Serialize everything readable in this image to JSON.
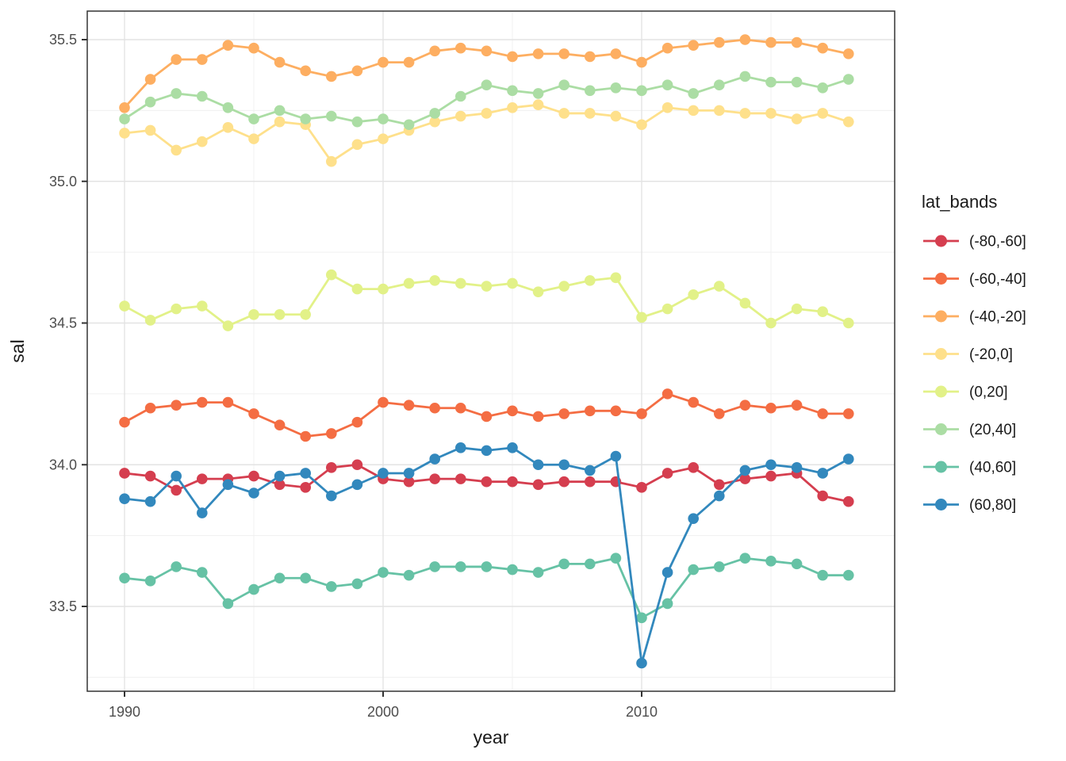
{
  "figure": {
    "background": "#ffffff",
    "panel_background": "#ffffff",
    "panel_border_color": "#333333",
    "grid_major_color": "#e3e3e3",
    "grid_minor_color": "#f0f0f0",
    "tick_color": "#333333",
    "tick_label_color": "#4d4d4d"
  },
  "axes": {
    "x": {
      "title": "year",
      "tick_labels": [
        "1990",
        "2000",
        "2010"
      ],
      "tick_values": [
        1990,
        2000,
        2010
      ],
      "minor_tick_values": [
        1995,
        2005,
        2015
      ]
    },
    "y": {
      "title": "sal",
      "tick_labels": [
        "35.5",
        "35.0",
        "34.5",
        "34.0",
        "33.5"
      ],
      "tick_values": [
        35.5,
        35.0,
        34.5,
        34.0,
        33.5
      ],
      "minor_tick_values": [
        35.25,
        34.75,
        34.25,
        33.75,
        33.25
      ]
    }
  },
  "legend": {
    "title": "lat_bands",
    "entries": [
      {
        "label": "(-80,-60]",
        "color": "#d53e4f"
      },
      {
        "label": "(-60,-40]",
        "color": "#f46d43"
      },
      {
        "label": "(-40,-20]",
        "color": "#fdae61"
      },
      {
        "label": "(-20,0]",
        "color": "#fee08b"
      },
      {
        "label": "(0,20]",
        "color": "#e2f188"
      },
      {
        "label": "(20,40]",
        "color": "#abdda4"
      },
      {
        "label": "(40,60]",
        "color": "#66c2a5"
      },
      {
        "label": "(60,80]",
        "color": "#3288bd"
      }
    ]
  },
  "chart_data": {
    "type": "line",
    "title": "",
    "xlabel": "year",
    "ylabel": "sal",
    "legend_title": "lat_bands",
    "legend_position": "right",
    "grid": true,
    "marker": "circle",
    "xlim": [
      1988.5,
      2019.8
    ],
    "ylim": [
      33.2,
      35.6
    ],
    "x": [
      1990,
      1991,
      1992,
      1993,
      1994,
      1995,
      1996,
      1997,
      1998,
      1999,
      2000,
      2001,
      2002,
      2003,
      2004,
      2005,
      2006,
      2007,
      2008,
      2009,
      2010,
      2011,
      2012,
      2013,
      2014,
      2015,
      2016,
      2017,
      2018
    ],
    "series": [
      {
        "name": "(-80,-60]",
        "color": "#d53e4f",
        "values": [
          33.97,
          33.96,
          33.91,
          33.95,
          33.95,
          33.96,
          33.93,
          33.92,
          33.99,
          34.0,
          33.95,
          33.94,
          33.95,
          33.95,
          33.94,
          33.94,
          33.93,
          33.94,
          33.94,
          33.94,
          33.92,
          33.97,
          33.99,
          33.93,
          33.95,
          33.96,
          33.97,
          33.89,
          33.87
        ]
      },
      {
        "name": "(-60,-40]",
        "color": "#f46d43",
        "values": [
          34.15,
          34.2,
          34.21,
          34.22,
          34.22,
          34.18,
          34.14,
          34.1,
          34.11,
          34.15,
          34.22,
          34.21,
          34.2,
          34.2,
          34.17,
          34.19,
          34.17,
          34.18,
          34.19,
          34.19,
          34.18,
          34.25,
          34.22,
          34.18,
          34.21,
          34.2,
          34.21,
          34.18,
          34.18
        ]
      },
      {
        "name": "(-40,-20]",
        "color": "#fdae61",
        "values": [
          35.26,
          35.36,
          35.43,
          35.43,
          35.48,
          35.47,
          35.42,
          35.39,
          35.37,
          35.39,
          35.42,
          35.42,
          35.46,
          35.47,
          35.46,
          35.44,
          35.45,
          35.45,
          35.44,
          35.45,
          35.42,
          35.47,
          35.48,
          35.49,
          35.5,
          35.49,
          35.49,
          35.47,
          35.45
        ]
      },
      {
        "name": "(-20,0]",
        "color": "#fee08b",
        "values": [
          35.17,
          35.18,
          35.11,
          35.14,
          35.19,
          35.15,
          35.21,
          35.2,
          35.07,
          35.13,
          35.15,
          35.18,
          35.21,
          35.23,
          35.24,
          35.26,
          35.27,
          35.24,
          35.24,
          35.23,
          35.2,
          35.26,
          35.25,
          35.25,
          35.24,
          35.24,
          35.22,
          35.24,
          35.21
        ]
      },
      {
        "name": "(0,20]",
        "color": "#e2f188",
        "values": [
          34.56,
          34.51,
          34.55,
          34.56,
          34.49,
          34.53,
          34.53,
          34.53,
          34.67,
          34.62,
          34.62,
          34.64,
          34.65,
          34.64,
          34.63,
          34.64,
          34.61,
          34.63,
          34.65,
          34.66,
          34.52,
          34.55,
          34.6,
          34.63,
          34.57,
          34.5,
          34.55,
          34.54,
          34.5
        ]
      },
      {
        "name": "(20,40]",
        "color": "#abdda4",
        "values": [
          35.22,
          35.28,
          35.31,
          35.3,
          35.26,
          35.22,
          35.25,
          35.22,
          35.23,
          35.21,
          35.22,
          35.2,
          35.24,
          35.3,
          35.34,
          35.32,
          35.31,
          35.34,
          35.32,
          35.33,
          35.32,
          35.34,
          35.31,
          35.34,
          35.37,
          35.35,
          35.35,
          35.33,
          35.36
        ]
      },
      {
        "name": "(40,60]",
        "color": "#66c2a5",
        "values": [
          33.6,
          33.59,
          33.64,
          33.62,
          33.51,
          33.56,
          33.6,
          33.6,
          33.57,
          33.58,
          33.62,
          33.61,
          33.64,
          33.64,
          33.64,
          33.63,
          33.62,
          33.65,
          33.65,
          33.67,
          33.46,
          33.51,
          33.63,
          33.64,
          33.67,
          33.66,
          33.65,
          33.61,
          33.61
        ]
      },
      {
        "name": "(60,80]",
        "color": "#3288bd",
        "values": [
          33.88,
          33.87,
          33.96,
          33.83,
          33.93,
          33.9,
          33.96,
          33.97,
          33.89,
          33.93,
          33.97,
          33.97,
          34.02,
          34.06,
          34.05,
          34.06,
          34.0,
          34.0,
          33.98,
          34.03,
          33.3,
          33.62,
          33.81,
          33.89,
          33.98,
          34.0,
          33.99,
          33.97,
          34.02
        ]
      }
    ]
  }
}
